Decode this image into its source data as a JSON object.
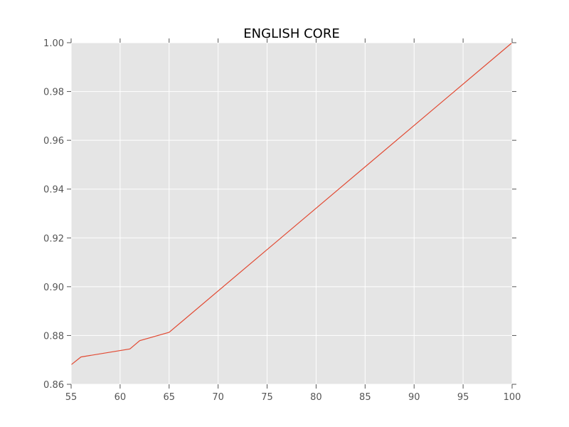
{
  "chart_data": {
    "type": "line",
    "title": "ENGLISH CORE",
    "xlabel": "",
    "ylabel": "",
    "xlim": [
      55,
      100
    ],
    "ylim": [
      0.86,
      1.0
    ],
    "xticks": [
      "55",
      "60",
      "65",
      "70",
      "75",
      "80",
      "85",
      "90",
      "95",
      "100"
    ],
    "yticks": [
      "0.86",
      "0.88",
      "0.90",
      "0.92",
      "0.94",
      "0.96",
      "0.98",
      "1.00"
    ],
    "grid": true,
    "colors": {
      "line": "#e24a33",
      "background": "#e5e5e5",
      "grid": "#ffffff"
    },
    "series": [
      {
        "x": [
          55,
          56,
          61,
          62,
          65,
          100
        ],
        "y": [
          0.868,
          0.8712,
          0.8745,
          0.8779,
          0.8813,
          1.0
        ]
      }
    ]
  }
}
